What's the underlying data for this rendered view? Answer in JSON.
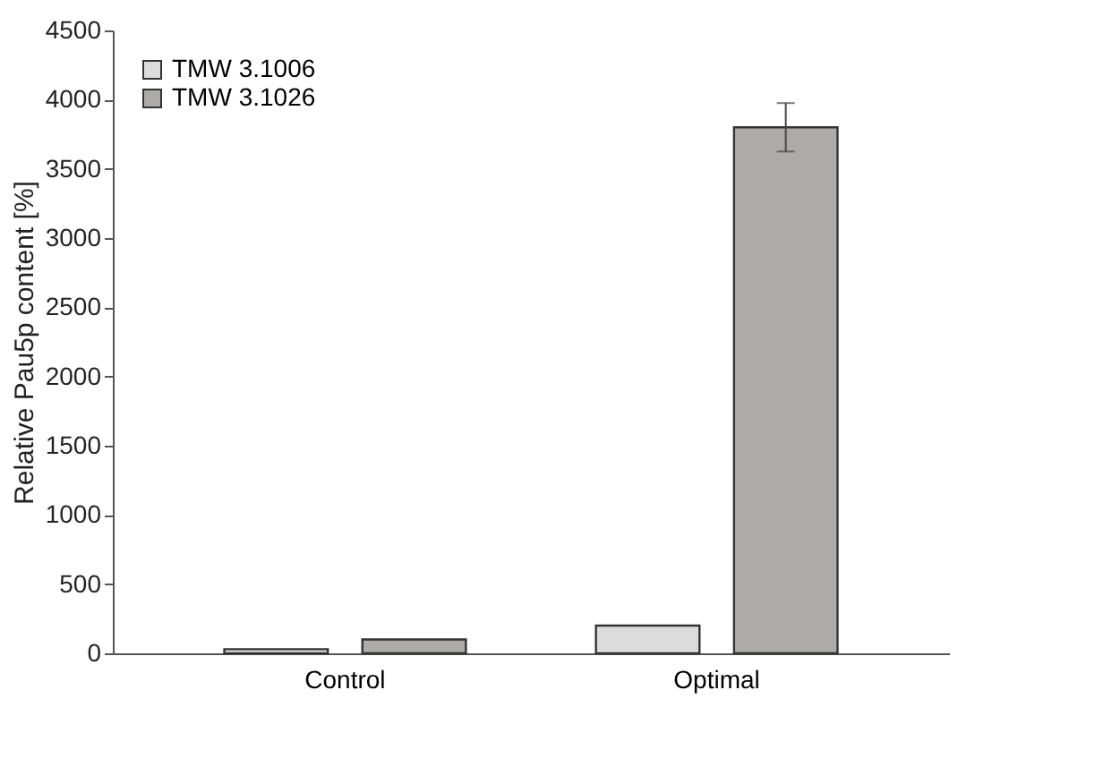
{
  "chart_data": {
    "type": "bar",
    "ylabel": "Relative Pau5p content [%]",
    "categories": [
      "Control",
      "Optimal"
    ],
    "series": [
      {
        "name": "TMW 3.1006",
        "color": "#dcdcdc",
        "values": [
          30,
          200
        ],
        "errors": [
          null,
          null
        ]
      },
      {
        "name": "TMW 3.1026",
        "color": "#aeaaaa",
        "values": [
          100,
          3800
        ],
        "errors": [
          null,
          175
        ]
      }
    ],
    "ylim": [
      0,
      4500
    ],
    "yticks": [
      0,
      500,
      1000,
      1500,
      2000,
      2500,
      3000,
      3500,
      4000,
      4500
    ],
    "grid": false,
    "legend": "top left"
  }
}
